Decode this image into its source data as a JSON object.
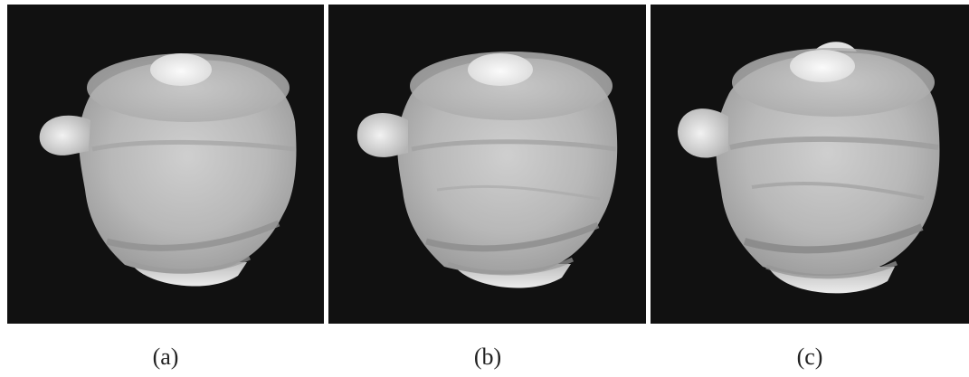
{
  "figure": {
    "panels": [
      {
        "id": "a",
        "label": "(a)",
        "surface": "smooth"
      },
      {
        "id": "b",
        "label": "(b)",
        "surface": "medium"
      },
      {
        "id": "c",
        "label": "(c)",
        "surface": "rough"
      }
    ]
  },
  "colors": {
    "background": "#111111",
    "surface_light": "#e6e6e6",
    "surface_mid": "#b9b9b9",
    "surface_dark": "#8e8e8e",
    "highlight": "#f7f7f7"
  }
}
